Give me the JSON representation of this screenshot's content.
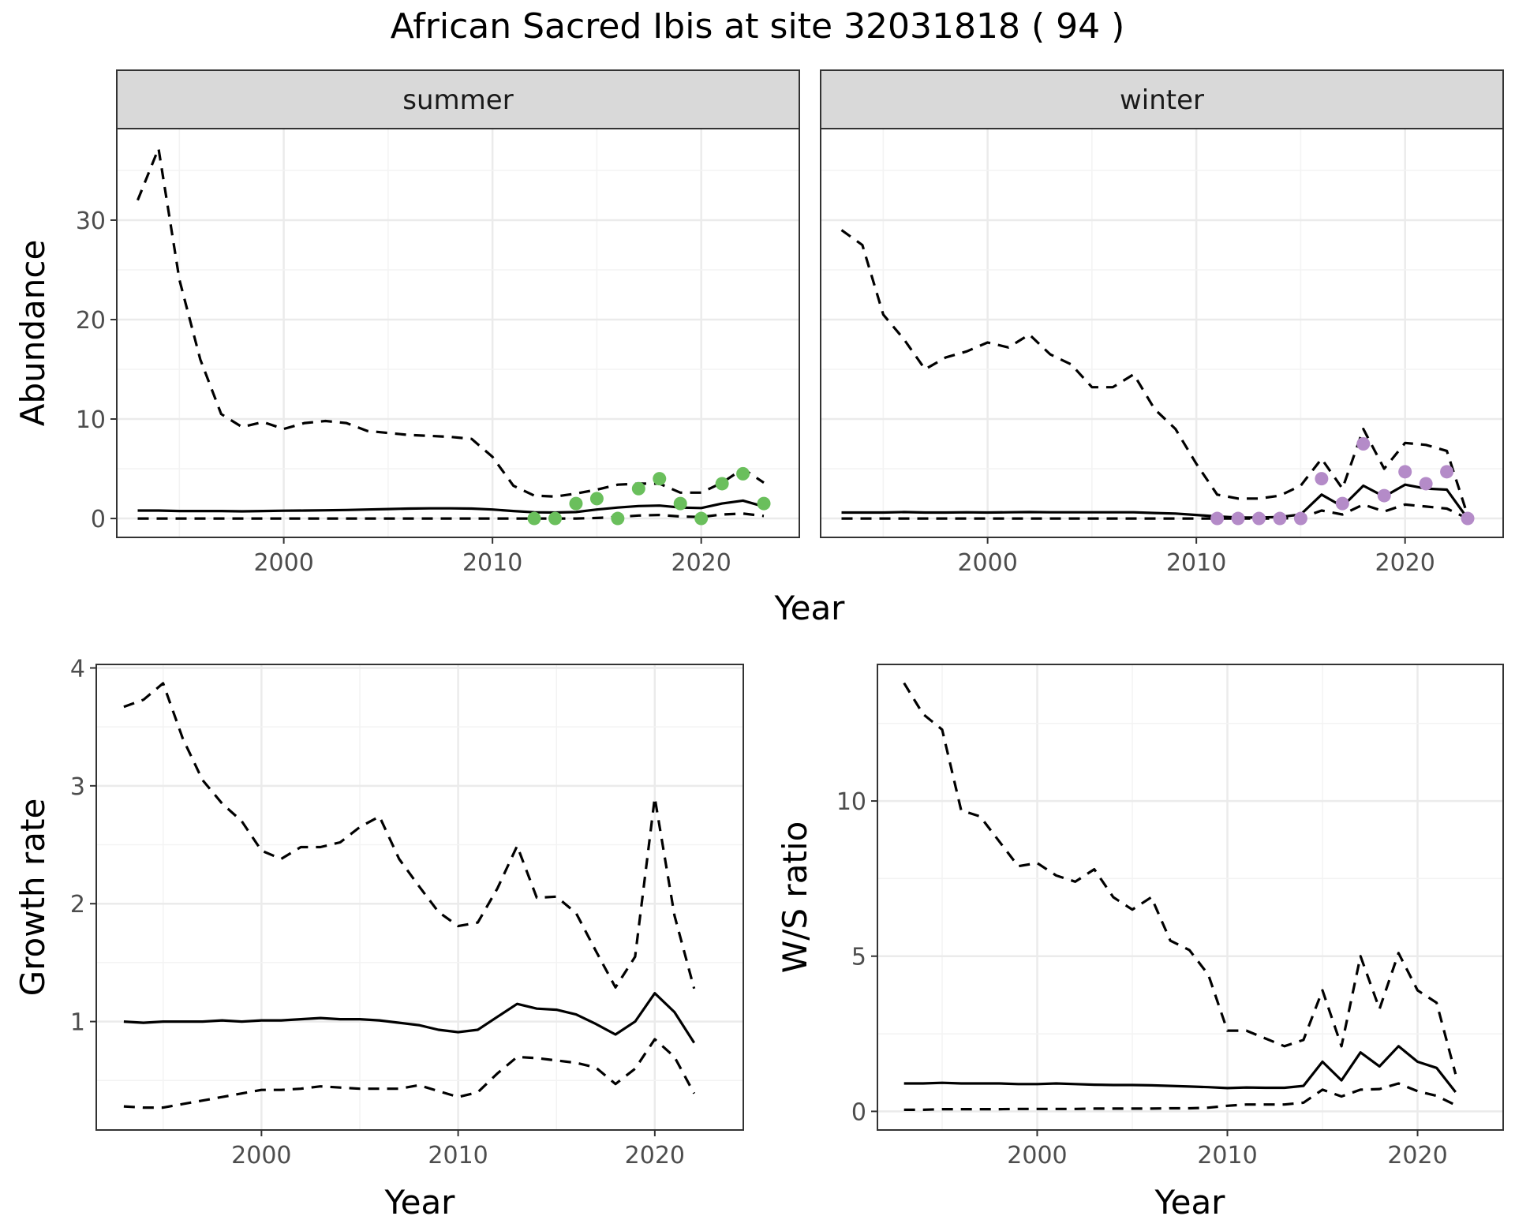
{
  "title": "African Sacred Ibis at site 32031818 ( 94 )",
  "colors": {
    "summer_points": "#6abf5c",
    "winter_points": "#b48bc8",
    "lines": "#000000"
  },
  "chart_data": [
    {
      "type": "line",
      "facet": "summer",
      "xlabel": "Year",
      "ylabel": "Abundance",
      "xlim": [
        1992,
        2024.7
      ],
      "ylim": [
        -1.9,
        39.2
      ],
      "x_ticks": [
        2000,
        2010,
        2020
      ],
      "y_ticks": [
        0,
        10,
        20,
        30
      ],
      "grid": true,
      "x": [
        1993,
        1994,
        1995,
        1996,
        1997,
        1998,
        1999,
        2000,
        2001,
        2002,
        2003,
        2004,
        2005,
        2006,
        2007,
        2008,
        2009,
        2010,
        2011,
        2012,
        2013,
        2014,
        2015,
        2016,
        2017,
        2018,
        2019,
        2020,
        2021,
        2022,
        2023
      ],
      "series": [
        {
          "role": "estimate",
          "values": [
            0.8,
            0.8,
            0.75,
            0.75,
            0.75,
            0.72,
            0.75,
            0.78,
            0.8,
            0.82,
            0.85,
            0.9,
            0.95,
            1.0,
            1.02,
            1.02,
            1.0,
            0.9,
            0.75,
            0.62,
            0.6,
            0.65,
            0.9,
            1.1,
            1.25,
            1.3,
            1.1,
            1.05,
            1.5,
            1.8,
            1.2
          ]
        },
        {
          "role": "upper",
          "values": [
            32.0,
            37.2,
            24.0,
            16.0,
            10.5,
            9.2,
            9.7,
            9.0,
            9.6,
            9.8,
            9.6,
            8.8,
            8.6,
            8.4,
            8.3,
            8.2,
            8.0,
            6.2,
            3.3,
            2.3,
            2.2,
            2.5,
            2.9,
            3.4,
            3.5,
            3.5,
            2.6,
            2.6,
            3.6,
            5.0,
            3.6
          ]
        },
        {
          "role": "lower",
          "values": [
            0,
            0,
            0,
            0,
            0,
            0,
            0,
            0,
            0,
            0,
            0,
            0,
            0,
            0,
            0,
            0,
            0,
            0,
            0,
            0,
            0,
            0,
            0.05,
            0.15,
            0.3,
            0.35,
            0.2,
            0.15,
            0.4,
            0.5,
            0.25
          ]
        }
      ],
      "points": {
        "x": [
          2012,
          2013,
          2014,
          2015,
          2016,
          2017,
          2018,
          2019,
          2020,
          2021,
          2022,
          2023
        ],
        "y": [
          0.0,
          0.0,
          1.5,
          2.0,
          0.0,
          3.0,
          4.0,
          1.5,
          0.0,
          3.5,
          4.5,
          1.5
        ]
      }
    },
    {
      "type": "line",
      "facet": "winter",
      "xlabel": "Year",
      "ylabel": "Abundance",
      "xlim": [
        1992,
        2024.7
      ],
      "ylim": [
        -1.9,
        39.2
      ],
      "x_ticks": [
        2000,
        2010,
        2020
      ],
      "y_ticks": [
        0,
        10,
        20,
        30
      ],
      "grid": true,
      "x": [
        1993,
        1994,
        1995,
        1996,
        1997,
        1998,
        1999,
        2000,
        2001,
        2002,
        2003,
        2004,
        2005,
        2006,
        2007,
        2008,
        2009,
        2010,
        2011,
        2012,
        2013,
        2014,
        2015,
        2016,
        2017,
        2018,
        2019,
        2020,
        2021,
        2022,
        2023
      ],
      "series": [
        {
          "role": "estimate",
          "values": [
            0.6,
            0.6,
            0.6,
            0.65,
            0.6,
            0.6,
            0.62,
            0.6,
            0.62,
            0.65,
            0.62,
            0.62,
            0.62,
            0.62,
            0.62,
            0.55,
            0.5,
            0.35,
            0.2,
            0.1,
            0.1,
            0.15,
            0.4,
            2.4,
            1.2,
            3.3,
            2.2,
            3.4,
            3.0,
            2.9,
            0.0
          ]
        },
        {
          "role": "upper",
          "values": [
            29.0,
            27.5,
            20.5,
            18.0,
            15.0,
            16.2,
            16.8,
            17.7,
            17.2,
            18.5,
            16.5,
            15.5,
            13.2,
            13.2,
            14.5,
            11.0,
            9.0,
            5.5,
            2.4,
            2.0,
            2.0,
            2.3,
            3.3,
            6.0,
            3.0,
            9.0,
            5.0,
            7.6,
            7.4,
            6.8,
            0.3
          ]
        },
        {
          "role": "lower",
          "values": [
            0,
            0,
            0,
            0,
            0,
            0,
            0,
            0,
            0,
            0,
            0,
            0,
            0,
            0,
            0,
            0,
            0,
            0,
            0,
            0,
            0,
            0,
            0.05,
            0.8,
            0.4,
            1.4,
            0.7,
            1.4,
            1.2,
            1.0,
            0.0
          ]
        }
      ],
      "points": {
        "x": [
          2011,
          2012,
          2013,
          2014,
          2015,
          2016,
          2017,
          2018,
          2019,
          2020,
          2021,
          2022,
          2023
        ],
        "y": [
          0.0,
          0.0,
          0.0,
          0.0,
          0.0,
          4.0,
          1.5,
          7.5,
          2.3,
          4.7,
          3.5,
          4.7,
          0.0
        ]
      }
    },
    {
      "type": "line",
      "xlabel": "Year",
      "ylabel": "Growth rate",
      "xlim": [
        1991.6,
        2024.5
      ],
      "ylim": [
        0.08,
        4.03
      ],
      "x_ticks": [
        2000,
        2010,
        2020
      ],
      "y_ticks": [
        1,
        2,
        3,
        4
      ],
      "grid": true,
      "x": [
        1993,
        1994,
        1995,
        1996,
        1997,
        1998,
        1999,
        2000,
        2001,
        2002,
        2003,
        2004,
        2005,
        2006,
        2007,
        2008,
        2009,
        2010,
        2011,
        2012,
        2013,
        2014,
        2015,
        2016,
        2017,
        2018,
        2019,
        2020,
        2021,
        2022
      ],
      "series": [
        {
          "role": "estimate",
          "values": [
            1.0,
            0.99,
            1.0,
            1.0,
            1.0,
            1.01,
            1.0,
            1.01,
            1.01,
            1.02,
            1.03,
            1.02,
            1.02,
            1.01,
            0.99,
            0.97,
            0.93,
            0.91,
            0.93,
            1.04,
            1.15,
            1.11,
            1.1,
            1.06,
            0.98,
            0.89,
            1.0,
            1.24,
            1.08,
            0.82
          ]
        },
        {
          "role": "upper",
          "values": [
            3.67,
            3.73,
            3.87,
            3.4,
            3.05,
            2.85,
            2.7,
            2.45,
            2.38,
            2.48,
            2.48,
            2.52,
            2.65,
            2.74,
            2.38,
            2.15,
            1.93,
            1.81,
            1.84,
            2.13,
            2.49,
            2.05,
            2.06,
            1.92,
            1.6,
            1.29,
            1.55,
            2.9,
            1.9,
            1.28
          ]
        },
        {
          "role": "lower",
          "values": [
            0.28,
            0.27,
            0.27,
            0.3,
            0.33,
            0.36,
            0.39,
            0.42,
            0.42,
            0.43,
            0.45,
            0.44,
            0.43,
            0.43,
            0.43,
            0.46,
            0.41,
            0.36,
            0.4,
            0.56,
            0.7,
            0.69,
            0.67,
            0.65,
            0.61,
            0.47,
            0.6,
            0.85,
            0.7,
            0.39
          ]
        }
      ]
    },
    {
      "type": "line",
      "xlabel": "Year",
      "ylabel": "W/S ratio",
      "xlim": [
        1991.6,
        2024.5
      ],
      "ylim": [
        -0.6,
        14.4
      ],
      "x_ticks": [
        2000,
        2010,
        2020
      ],
      "y_ticks": [
        0,
        5,
        10
      ],
      "grid": true,
      "x": [
        1993,
        1994,
        1995,
        1996,
        1997,
        1998,
        1999,
        2000,
        2001,
        2002,
        2003,
        2004,
        2005,
        2006,
        2007,
        2008,
        2009,
        2010,
        2011,
        2012,
        2013,
        2014,
        2015,
        2016,
        2017,
        2018,
        2019,
        2020,
        2021,
        2022
      ],
      "series": [
        {
          "role": "estimate",
          "values": [
            0.9,
            0.9,
            0.92,
            0.9,
            0.9,
            0.9,
            0.88,
            0.88,
            0.9,
            0.88,
            0.86,
            0.85,
            0.85,
            0.84,
            0.82,
            0.8,
            0.78,
            0.75,
            0.77,
            0.76,
            0.76,
            0.82,
            1.6,
            1.0,
            1.9,
            1.45,
            2.1,
            1.6,
            1.4,
            0.62
          ]
        },
        {
          "role": "upper",
          "values": [
            13.8,
            12.8,
            12.3,
            9.7,
            9.5,
            8.7,
            7.9,
            8.0,
            7.6,
            7.4,
            7.8,
            6.9,
            6.5,
            6.9,
            5.5,
            5.2,
            4.4,
            2.6,
            2.6,
            2.35,
            2.1,
            2.3,
            3.9,
            2.1,
            5.0,
            3.3,
            5.1,
            3.9,
            3.5,
            1.2
          ]
        },
        {
          "role": "lower",
          "values": [
            0.05,
            0.05,
            0.07,
            0.07,
            0.07,
            0.07,
            0.08,
            0.08,
            0.08,
            0.08,
            0.09,
            0.09,
            0.09,
            0.09,
            0.1,
            0.1,
            0.12,
            0.18,
            0.22,
            0.22,
            0.22,
            0.28,
            0.7,
            0.48,
            0.7,
            0.72,
            0.9,
            0.65,
            0.5,
            0.2
          ]
        }
      ]
    }
  ]
}
